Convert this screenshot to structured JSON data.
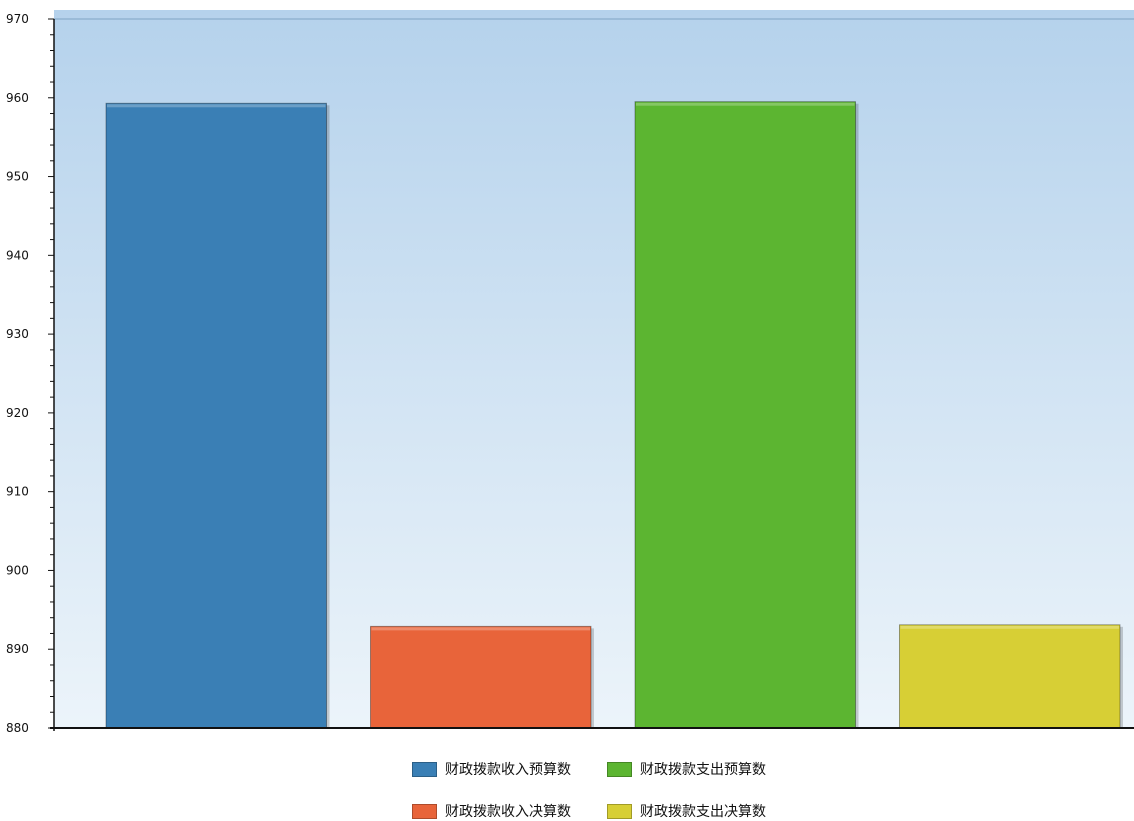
{
  "chart_data": {
    "type": "bar",
    "title": "",
    "xlabel": "",
    "ylabel": "",
    "ylim": [
      880,
      970
    ],
    "yticks": [
      880,
      890,
      900,
      910,
      920,
      930,
      940,
      950,
      960,
      970
    ],
    "minor_ticks_per_major": 5,
    "grid": false,
    "legend_position": "bottom",
    "series": [
      {
        "name": "财政拨款收入预算数",
        "value": 959.3,
        "color": "#3a7fb5"
      },
      {
        "name": "财政拨款收入决算数",
        "value": 892.9,
        "color": "#e8643a"
      },
      {
        "name": "财政拨款支出预算数",
        "value": 959.5,
        "color": "#5cb531"
      },
      {
        "name": "财政拨款支出决算数",
        "value": 893.1,
        "color": "#d7cf35"
      }
    ],
    "legend_order": [
      0,
      2,
      1,
      3
    ]
  }
}
